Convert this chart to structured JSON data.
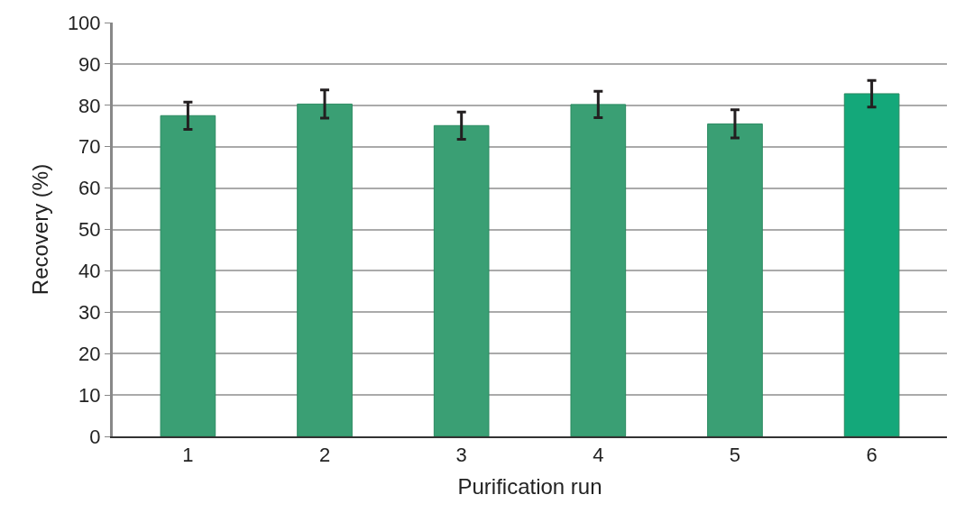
{
  "chart_data": {
    "type": "bar",
    "xlabel": "Purification run",
    "ylabel": "Recovery (%)",
    "categories": [
      "1",
      "2",
      "3",
      "4",
      "5",
      "6"
    ],
    "values": [
      77.5,
      80.3,
      75.1,
      80.2,
      75.5,
      82.8
    ],
    "errors": [
      3.3,
      3.4,
      3.3,
      3.2,
      3.4,
      3.2
    ],
    "colors": [
      "#3a9f74",
      "#3a9f74",
      "#3a9f74",
      "#3a9f74",
      "#3a9f74",
      "#14a87a"
    ],
    "ylim": [
      0,
      100
    ],
    "yticks": [
      0,
      10,
      20,
      30,
      40,
      50,
      60,
      70,
      80,
      90,
      100
    ],
    "grid": "y"
  }
}
